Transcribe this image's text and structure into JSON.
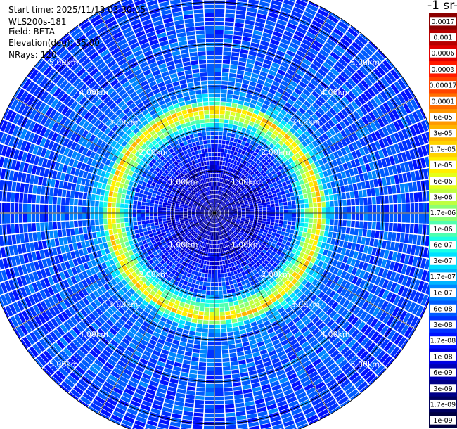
{
  "header": {
    "start_time": "Start time: 2025/11/13 03:30:05",
    "instrument": "WLS200s-181",
    "field": "Field: BETA",
    "elevation": "Elevation(deg): 35.00",
    "nrays": "NRays: 120"
  },
  "colorbar": {
    "title": "-1 sr-",
    "labels": [
      "0.0017",
      "0.001",
      "0.0006",
      "0.0003",
      "0.00017",
      "0.0001",
      "6e-05",
      "3e-05",
      "1.7e-05",
      "1e-05",
      "6e-06",
      "3e-06",
      "1.7e-06",
      "1e-06",
      "6e-07",
      "3e-07",
      "1.7e-07",
      "1e-07",
      "6e-08",
      "3e-08",
      "1.7e-08",
      "1e-08",
      "6e-09",
      "3e-09",
      "1.7e-09",
      "1e-09"
    ],
    "colors": [
      "#8b0000",
      "#b50000",
      "#df0000",
      "#ff1a00",
      "#ff4400",
      "#ff6e00",
      "#ff9800",
      "#ffb400",
      "#ffd200",
      "#ffef00",
      "#e6ff1a",
      "#bfff40",
      "#8cff73",
      "#50ffaf",
      "#1affe6",
      "#00e1ff",
      "#00b4ff",
      "#0087ff",
      "#005cff",
      "#0033ff",
      "#0012ff",
      "#0000e1",
      "#0000b4",
      "#000087",
      "#00005e",
      "#000040"
    ]
  },
  "chart_data": {
    "type": "heatmap",
    "projection": "polar (PPI)",
    "range_rings_km": [
      1,
      2,
      3,
      4,
      5
    ],
    "ring_labels": [
      "1.00km",
      "2.00km",
      "3.00km",
      "4.00km",
      "5.00km"
    ],
    "nrays": 120,
    "max_range_km": 5.5,
    "radial_profile": [
      {
        "range_km": 0.0,
        "beta": 5e-09
      },
      {
        "range_km": 1.0,
        "beta": 1e-08
      },
      {
        "range_km": 1.9,
        "beta": 4e-08
      },
      {
        "range_km": 2.5,
        "beta": 1.7e-05
      },
      {
        "range_km": 2.65,
        "beta": 3e-07
      },
      {
        "range_km": 3.0,
        "beta": 6e-08
      },
      {
        "range_km": 5.5,
        "beta": 3e-08
      }
    ]
  }
}
